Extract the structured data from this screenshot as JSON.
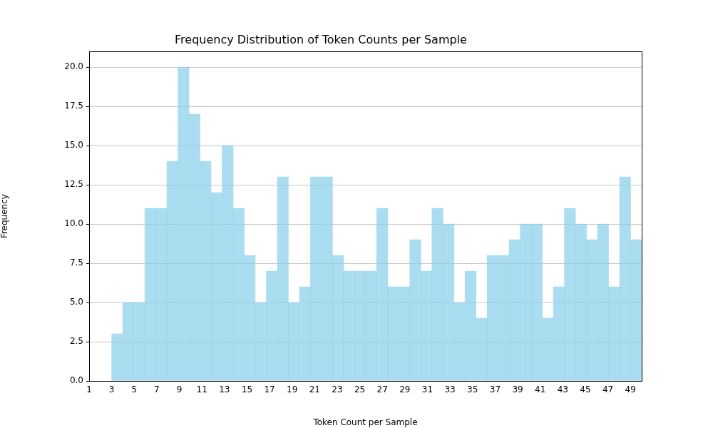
{
  "chart_data": {
    "type": "histogram",
    "title": "Frequency Distribution of Token Counts per Sample",
    "x_label": "Token Count per Sample",
    "y_label": "Frequency",
    "bins": [
      3,
      3.979,
      4.958,
      5.938,
      6.917,
      7.896,
      8.875,
      9.854,
      10.833,
      11.813,
      12.792,
      13.771,
      14.75,
      15.729,
      16.708,
      17.688,
      18.667,
      19.646,
      20.625,
      21.604,
      22.583,
      23.563,
      24.542,
      25.521,
      26.5,
      27.479,
      28.458,
      29.438,
      30.417,
      31.396,
      32.375,
      33.354,
      34.333,
      35.313,
      36.292,
      37.271,
      38.25,
      39.229,
      40.208,
      41.188,
      42.167,
      43.146,
      44.125,
      45.104,
      46.083,
      47.063,
      48.042,
      49.021,
      50
    ],
    "values": [
      3,
      5,
      5,
      11,
      11,
      14,
      20,
      17,
      14,
      12,
      15,
      11,
      8,
      5,
      7,
      13,
      5,
      6,
      13,
      13,
      8,
      7,
      7,
      7,
      11,
      6,
      6,
      9,
      7,
      11,
      10,
      5,
      7,
      4,
      8,
      8,
      9,
      10,
      10,
      4,
      6,
      11,
      10,
      9,
      10,
      6,
      13,
      9
    ],
    "color": "#87ceeb",
    "xlim": [
      1,
      50
    ],
    "xticks": [
      1,
      3,
      5,
      7,
      9,
      11,
      13,
      15,
      17,
      19,
      21,
      23,
      25,
      27,
      29,
      31,
      33,
      35,
      37,
      39,
      41,
      43,
      45,
      47,
      49
    ],
    "ylim": [
      0,
      21
    ],
    "yticks": [
      {
        "value": 0,
        "label": "0.0"
      },
      {
        "value": 2.5,
        "label": "2.5"
      },
      {
        "value": 5,
        "label": "5.0"
      },
      {
        "value": 7.5,
        "label": "7.5"
      },
      {
        "value": 10,
        "label": "10.0"
      },
      {
        "value": 12.5,
        "label": "12.5"
      },
      {
        "value": 15,
        "label": "15.0"
      },
      {
        "value": 17.5,
        "label": "17.5"
      },
      {
        "value": 20,
        "label": "20.0"
      }
    ],
    "grid": "y"
  }
}
